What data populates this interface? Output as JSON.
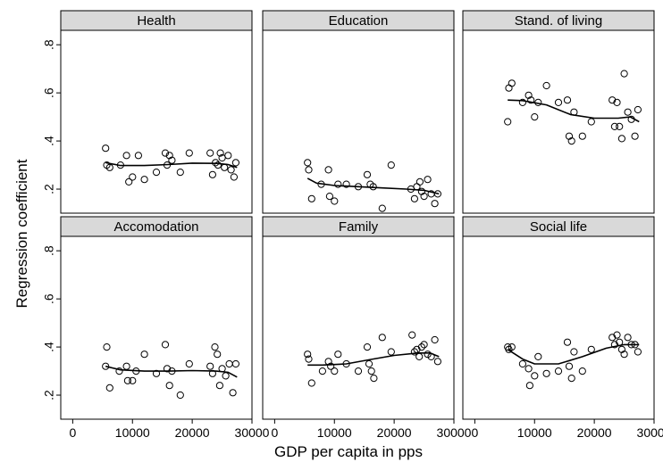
{
  "chart_data": {
    "type": "scatter",
    "xlabel": "GDP per capita in pps",
    "ylabel": "Regression coefficient",
    "xlim": [
      -2000,
      30000
    ],
    "ylim": [
      0.1,
      0.86
    ],
    "x_ticks": [
      0,
      10000,
      20000,
      30000
    ],
    "y_ticks": [
      0.2,
      0.4,
      0.6,
      0.8
    ],
    "y_tick_labels": [
      ".2",
      ".4",
      ".6",
      ".8"
    ],
    "grid": false,
    "legend": "none",
    "marker": "hollow-circle",
    "fit": "smoothed line",
    "panels": [
      {
        "title": "Health",
        "points": [
          [
            5500,
            0.37
          ],
          [
            5700,
            0.3
          ],
          [
            6200,
            0.29
          ],
          [
            8000,
            0.3
          ],
          [
            9000,
            0.34
          ],
          [
            9400,
            0.23
          ],
          [
            10000,
            0.25
          ],
          [
            11000,
            0.34
          ],
          [
            12000,
            0.24
          ],
          [
            14000,
            0.27
          ],
          [
            15500,
            0.35
          ],
          [
            15800,
            0.3
          ],
          [
            16200,
            0.34
          ],
          [
            16600,
            0.32
          ],
          [
            18000,
            0.27
          ],
          [
            19500,
            0.35
          ],
          [
            23000,
            0.35
          ],
          [
            23400,
            0.26
          ],
          [
            23900,
            0.31
          ],
          [
            24300,
            0.3
          ],
          [
            24700,
            0.35
          ],
          [
            25000,
            0.33
          ],
          [
            25400,
            0.29
          ],
          [
            26000,
            0.34
          ],
          [
            26500,
            0.28
          ],
          [
            27000,
            0.25
          ],
          [
            27300,
            0.31
          ]
        ],
        "fit": [
          [
            5500,
            0.31
          ],
          [
            8000,
            0.298
          ],
          [
            12000,
            0.298
          ],
          [
            16000,
            0.302
          ],
          [
            20000,
            0.308
          ],
          [
            24000,
            0.307
          ],
          [
            26000,
            0.302
          ],
          [
            27500,
            0.29
          ]
        ]
      },
      {
        "title": "Education",
        "points": [
          [
            5500,
            0.31
          ],
          [
            5700,
            0.28
          ],
          [
            6200,
            0.16
          ],
          [
            7800,
            0.22
          ],
          [
            9000,
            0.28
          ],
          [
            9200,
            0.17
          ],
          [
            10000,
            0.15
          ],
          [
            10600,
            0.22
          ],
          [
            12000,
            0.22
          ],
          [
            14000,
            0.21
          ],
          [
            15500,
            0.26
          ],
          [
            16000,
            0.22
          ],
          [
            16500,
            0.21
          ],
          [
            18000,
            0.12
          ],
          [
            19500,
            0.3
          ],
          [
            22800,
            0.2
          ],
          [
            23400,
            0.16
          ],
          [
            23800,
            0.21
          ],
          [
            24300,
            0.23
          ],
          [
            24600,
            0.19
          ],
          [
            25000,
            0.17
          ],
          [
            25600,
            0.24
          ],
          [
            26200,
            0.18
          ],
          [
            26800,
            0.14
          ],
          [
            27300,
            0.18
          ]
        ],
        "fit": [
          [
            5500,
            0.245
          ],
          [
            7000,
            0.225
          ],
          [
            10000,
            0.215
          ],
          [
            14000,
            0.21
          ],
          [
            18000,
            0.205
          ],
          [
            22000,
            0.2
          ],
          [
            25000,
            0.195
          ],
          [
            27500,
            0.18
          ]
        ]
      },
      {
        "title": "Stand. of living",
        "points": [
          [
            5500,
            0.48
          ],
          [
            5700,
            0.62
          ],
          [
            6200,
            0.64
          ],
          [
            8000,
            0.56
          ],
          [
            9000,
            0.59
          ],
          [
            9400,
            0.57
          ],
          [
            10000,
            0.5
          ],
          [
            10600,
            0.56
          ],
          [
            12000,
            0.63
          ],
          [
            14000,
            0.56
          ],
          [
            15500,
            0.57
          ],
          [
            15800,
            0.42
          ],
          [
            16200,
            0.4
          ],
          [
            16600,
            0.52
          ],
          [
            18000,
            0.42
          ],
          [
            19500,
            0.48
          ],
          [
            23000,
            0.57
          ],
          [
            23400,
            0.46
          ],
          [
            23800,
            0.56
          ],
          [
            24200,
            0.46
          ],
          [
            24600,
            0.41
          ],
          [
            25000,
            0.68
          ],
          [
            25600,
            0.52
          ],
          [
            26200,
            0.49
          ],
          [
            26800,
            0.42
          ],
          [
            27300,
            0.53
          ]
        ],
        "fit": [
          [
            5500,
            0.57
          ],
          [
            8000,
            0.568
          ],
          [
            12000,
            0.55
          ],
          [
            16000,
            0.51
          ],
          [
            20000,
            0.495
          ],
          [
            24000,
            0.495
          ],
          [
            26000,
            0.5
          ],
          [
            27500,
            0.48
          ]
        ]
      },
      {
        "title": "Accomodation",
        "points": [
          [
            5500,
            0.32
          ],
          [
            5700,
            0.4
          ],
          [
            6200,
            0.23
          ],
          [
            7800,
            0.3
          ],
          [
            9000,
            0.32
          ],
          [
            9200,
            0.26
          ],
          [
            10000,
            0.26
          ],
          [
            10600,
            0.3
          ],
          [
            12000,
            0.37
          ],
          [
            14000,
            0.29
          ],
          [
            15500,
            0.41
          ],
          [
            15800,
            0.31
          ],
          [
            16200,
            0.24
          ],
          [
            16600,
            0.3
          ],
          [
            18000,
            0.2
          ],
          [
            19500,
            0.33
          ],
          [
            23000,
            0.32
          ],
          [
            23400,
            0.29
          ],
          [
            23800,
            0.4
          ],
          [
            24200,
            0.37
          ],
          [
            24600,
            0.24
          ],
          [
            25000,
            0.31
          ],
          [
            25600,
            0.28
          ],
          [
            26200,
            0.33
          ],
          [
            26800,
            0.21
          ],
          [
            27300,
            0.33
          ]
        ],
        "fit": [
          [
            5500,
            0.32
          ],
          [
            8000,
            0.305
          ],
          [
            12000,
            0.3
          ],
          [
            16000,
            0.3
          ],
          [
            20000,
            0.302
          ],
          [
            24000,
            0.3
          ],
          [
            26000,
            0.295
          ],
          [
            27500,
            0.275
          ]
        ]
      },
      {
        "title": "Family",
        "points": [
          [
            5500,
            0.37
          ],
          [
            5700,
            0.35
          ],
          [
            6200,
            0.25
          ],
          [
            8000,
            0.3
          ],
          [
            9000,
            0.34
          ],
          [
            9400,
            0.32
          ],
          [
            10000,
            0.3
          ],
          [
            10600,
            0.37
          ],
          [
            12000,
            0.33
          ],
          [
            14000,
            0.3
          ],
          [
            15500,
            0.4
          ],
          [
            15800,
            0.33
          ],
          [
            16200,
            0.3
          ],
          [
            16600,
            0.27
          ],
          [
            18000,
            0.44
          ],
          [
            19500,
            0.38
          ],
          [
            23000,
            0.45
          ],
          [
            23400,
            0.38
          ],
          [
            23800,
            0.39
          ],
          [
            24200,
            0.36
          ],
          [
            24600,
            0.4
          ],
          [
            25000,
            0.41
          ],
          [
            25600,
            0.37
          ],
          [
            26200,
            0.36
          ],
          [
            26800,
            0.43
          ],
          [
            27300,
            0.34
          ]
        ],
        "fit": [
          [
            5500,
            0.325
          ],
          [
            8000,
            0.325
          ],
          [
            12000,
            0.33
          ],
          [
            16000,
            0.348
          ],
          [
            20000,
            0.365
          ],
          [
            24000,
            0.375
          ],
          [
            26000,
            0.375
          ],
          [
            27500,
            0.36
          ]
        ]
      },
      {
        "title": "Social life",
        "points": [
          [
            5500,
            0.4
          ],
          [
            5700,
            0.39
          ],
          [
            6200,
            0.4
          ],
          [
            8000,
            0.33
          ],
          [
            9000,
            0.31
          ],
          [
            9200,
            0.24
          ],
          [
            10000,
            0.28
          ],
          [
            10600,
            0.36
          ],
          [
            12000,
            0.29
          ],
          [
            14000,
            0.3
          ],
          [
            15500,
            0.42
          ],
          [
            15800,
            0.32
          ],
          [
            16200,
            0.27
          ],
          [
            16600,
            0.38
          ],
          [
            18000,
            0.3
          ],
          [
            19500,
            0.39
          ],
          [
            23000,
            0.44
          ],
          [
            23400,
            0.41
          ],
          [
            23800,
            0.45
          ],
          [
            24200,
            0.42
          ],
          [
            24600,
            0.39
          ],
          [
            25000,
            0.37
          ],
          [
            25600,
            0.44
          ],
          [
            26200,
            0.41
          ],
          [
            26800,
            0.41
          ],
          [
            27300,
            0.38
          ]
        ],
        "fit": [
          [
            5500,
            0.39
          ],
          [
            8000,
            0.35
          ],
          [
            10000,
            0.33
          ],
          [
            14000,
            0.33
          ],
          [
            18000,
            0.36
          ],
          [
            22000,
            0.395
          ],
          [
            25000,
            0.41
          ],
          [
            27500,
            0.41
          ]
        ]
      }
    ]
  }
}
